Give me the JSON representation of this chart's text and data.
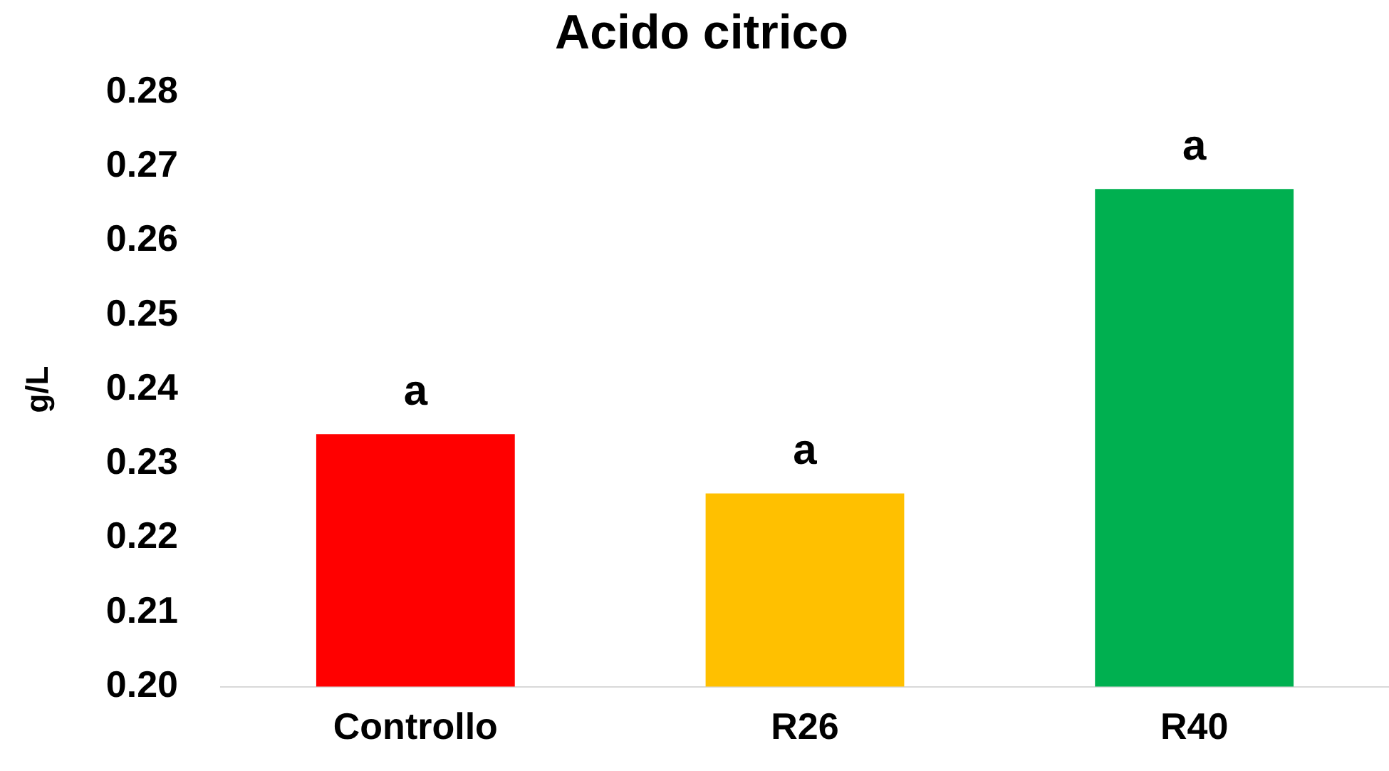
{
  "chart_data": {
    "type": "bar",
    "title": "Acido citrico",
    "ylabel": "g/L",
    "categories": [
      "Controllo",
      "R26",
      "R40"
    ],
    "values": [
      0.234,
      0.226,
      0.267
    ],
    "colors": [
      "#ff0000",
      "#ffc000",
      "#00b050"
    ],
    "ylim": [
      0.2,
      0.28
    ],
    "yticks": [
      {
        "value": 0.2,
        "label": "0.20"
      },
      {
        "value": 0.21,
        "label": "0.21"
      },
      {
        "value": 0.22,
        "label": "0.22"
      },
      {
        "value": 0.23,
        "label": "0.23"
      },
      {
        "value": 0.24,
        "label": "0.24"
      },
      {
        "value": 0.25,
        "label": "0.25"
      },
      {
        "value": 0.26,
        "label": "0.26"
      },
      {
        "value": 0.27,
        "label": "0.27"
      },
      {
        "value": 0.28,
        "label": "0.28"
      }
    ],
    "grid": false,
    "legend": false,
    "annotations": [
      {
        "text": "a",
        "x": "Controllo",
        "y": 0.234
      },
      {
        "text": "a",
        "x": "R26",
        "y": 0.226
      },
      {
        "text": "a",
        "x": "R40",
        "y": 0.267
      }
    ]
  }
}
